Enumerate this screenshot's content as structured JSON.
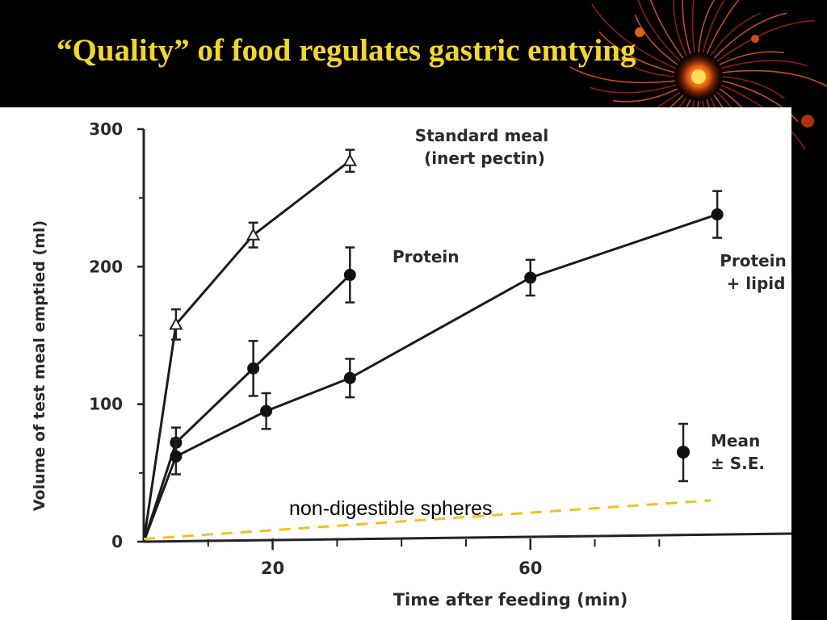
{
  "slide": {
    "title": "“Quality” of food regulates gastric emtying"
  },
  "chart_data": {
    "type": "line",
    "xlabel": "Time after feeding (min)",
    "ylabel": "Volume of test meal emptied (ml)",
    "xlim": [
      0,
      95
    ],
    "ylim": [
      0,
      300
    ],
    "xticks": [
      20,
      60
    ],
    "yticks": [
      0,
      100,
      200,
      300
    ],
    "series": [
      {
        "name": "Standard meal (inert pectin)",
        "name_lines": [
          "Standard meal",
          "(inert pectin)"
        ],
        "marker": "open-triangle",
        "x": [
          0,
          5,
          17,
          32
        ],
        "y": [
          0,
          158,
          223,
          277
        ],
        "err": [
          0,
          11,
          9,
          8
        ]
      },
      {
        "name": "Protein",
        "name_lines": [
          "Protein"
        ],
        "marker": "filled-circle",
        "x": [
          0,
          5,
          17,
          32
        ],
        "y": [
          0,
          72,
          126,
          194
        ],
        "err": [
          0,
          11,
          20,
          20
        ]
      },
      {
        "name": "Protein + lipid",
        "name_lines": [
          "Protein",
          "+ lipid"
        ],
        "marker": "filled-circle",
        "x": [
          0,
          5,
          19,
          32,
          60,
          89
        ],
        "y": [
          0,
          62,
          95,
          119,
          192,
          238
        ],
        "err": [
          0,
          13,
          13,
          14,
          13,
          17
        ]
      },
      {
        "name": "non-digestible spheres",
        "name_lines": [
          "non-digestible spheres"
        ],
        "style": "dashed",
        "color": "#f2c21c",
        "x": [
          0,
          88
        ],
        "y": [
          2,
          30
        ]
      }
    ],
    "legend": {
      "labels": [
        "Mean",
        "± S.E."
      ],
      "marker": "filled-circle-with-errorbar",
      "placement": "bottom-right"
    }
  }
}
